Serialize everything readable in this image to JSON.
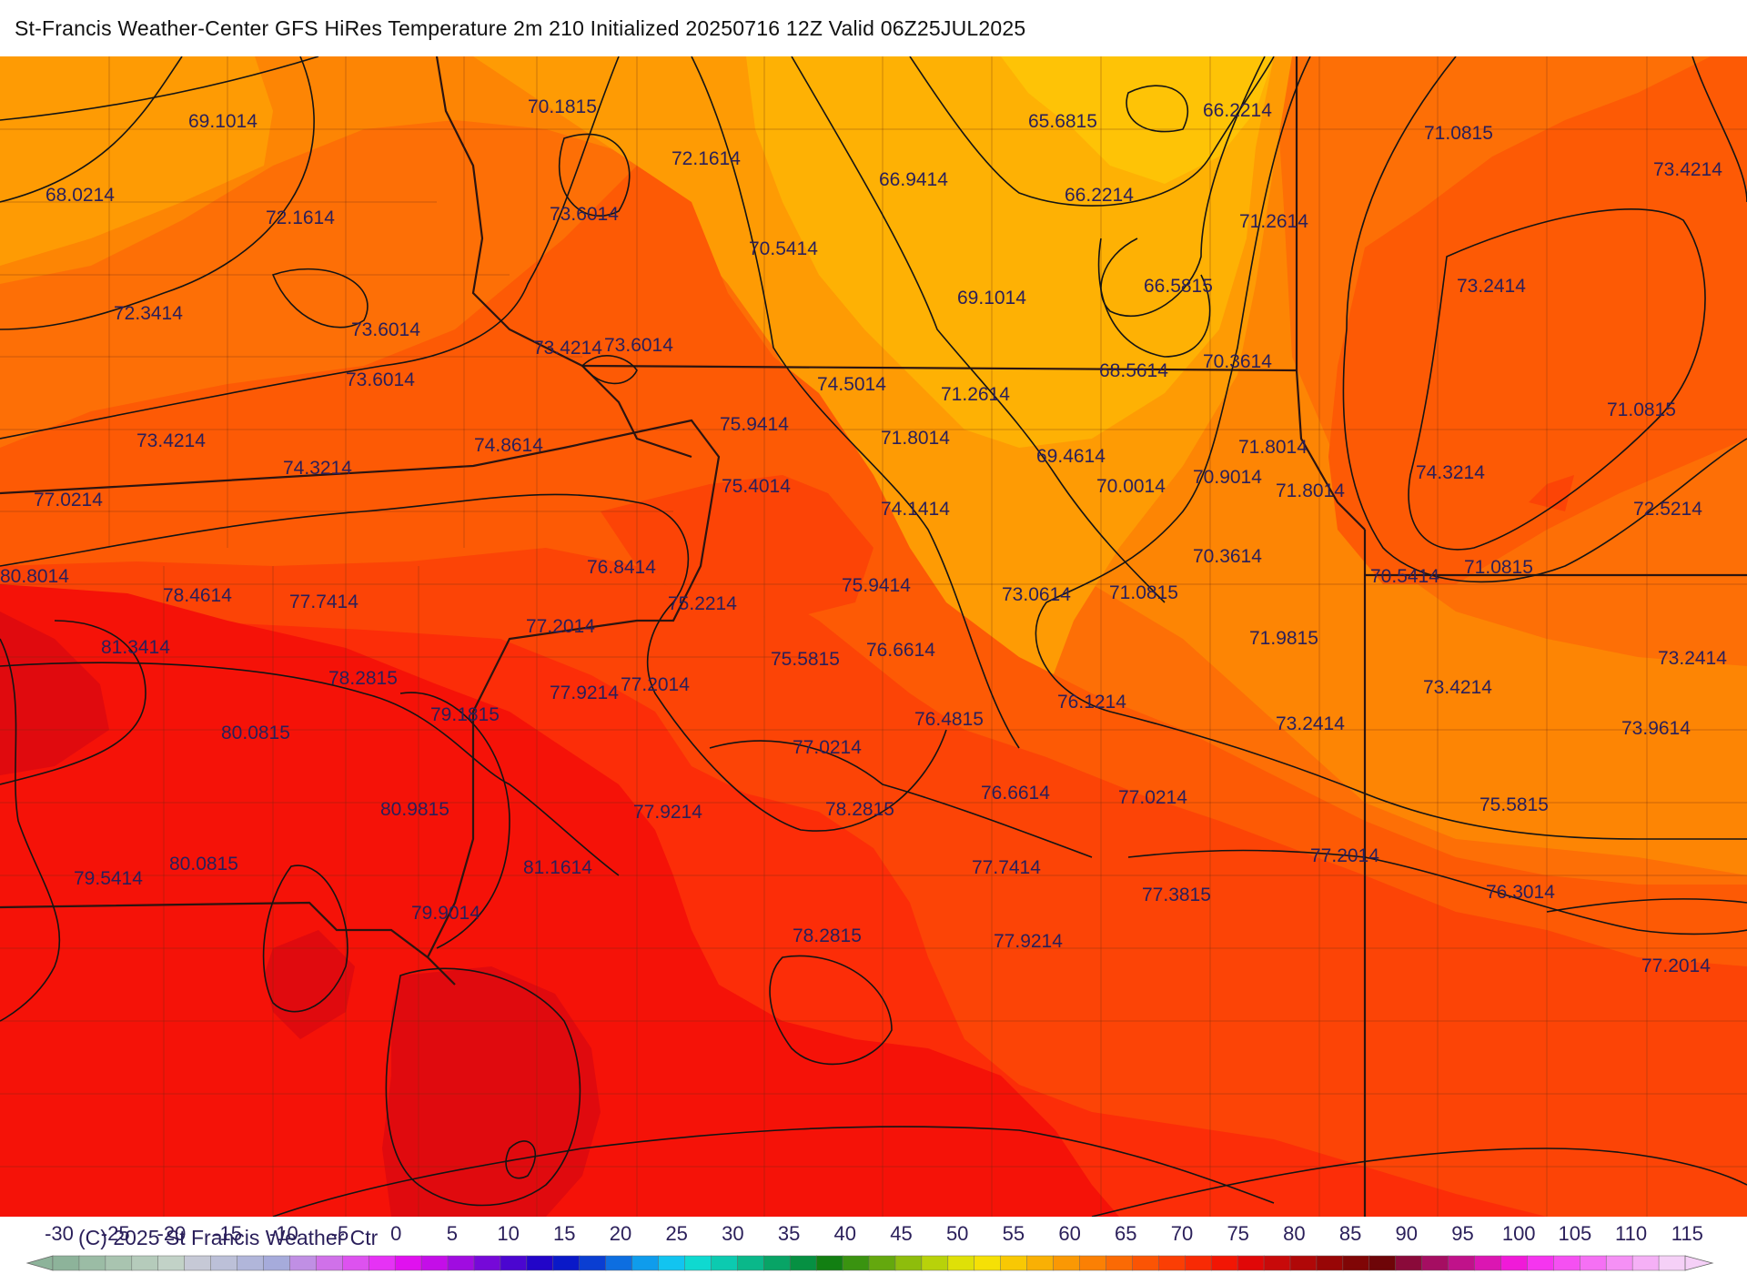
{
  "title": "St-Francis Weather-Center GFS HiRes Temperature 2m  210 Initialized 20250716 12Z Valid 06Z25JUL2025",
  "copyright": "(C) 2025 St Francis Weather Ctr",
  "temperature_labels": [
    {
      "id": "l1",
      "text": "69.1014"
    },
    {
      "id": "l2",
      "text": "70.1815"
    },
    {
      "id": "l3",
      "text": "65.6815"
    },
    {
      "id": "l4",
      "text": "66.2214"
    },
    {
      "id": "l5",
      "text": "71.0815"
    },
    {
      "id": "l6",
      "text": "73.4214"
    },
    {
      "id": "l7",
      "text": "68.0214"
    },
    {
      "id": "l8",
      "text": "72.1614"
    },
    {
      "id": "l9",
      "text": "72.1614"
    },
    {
      "id": "l10",
      "text": "73.6014"
    },
    {
      "id": "l11",
      "text": "66.9414"
    },
    {
      "id": "l12",
      "text": "66.2214"
    },
    {
      "id": "l13",
      "text": "71.2614"
    },
    {
      "id": "l14",
      "text": "70.5414"
    },
    {
      "id": "l15",
      "text": "66.5815"
    },
    {
      "id": "l16",
      "text": "73.2414"
    },
    {
      "id": "l17",
      "text": "72.3414"
    },
    {
      "id": "l18",
      "text": "73.6014"
    },
    {
      "id": "l19",
      "text": "69.1014"
    },
    {
      "id": "l20",
      "text": "73.4214"
    },
    {
      "id": "l21",
      "text": "73.6014"
    },
    {
      "id": "l22",
      "text": "68.5614"
    },
    {
      "id": "l23",
      "text": "70.3614"
    },
    {
      "id": "l24",
      "text": "73.6014"
    },
    {
      "id": "l25",
      "text": "74.5014"
    },
    {
      "id": "l26",
      "text": "71.2614"
    },
    {
      "id": "l27",
      "text": "71.0815"
    },
    {
      "id": "l28",
      "text": "73.4214"
    },
    {
      "id": "l29",
      "text": "74.8614"
    },
    {
      "id": "l30",
      "text": "75.9414"
    },
    {
      "id": "l31",
      "text": "71.8014"
    },
    {
      "id": "l32",
      "text": "69.4614"
    },
    {
      "id": "l33",
      "text": "71.8014"
    },
    {
      "id": "l34",
      "text": "74.3214"
    },
    {
      "id": "l35",
      "text": "74.3214"
    },
    {
      "id": "l36",
      "text": "70.9014"
    },
    {
      "id": "l37",
      "text": "77.0214"
    },
    {
      "id": "l38",
      "text": "75.4014"
    },
    {
      "id": "l39",
      "text": "70.0014"
    },
    {
      "id": "l40",
      "text": "71.8014"
    },
    {
      "id": "l41",
      "text": "74.1414"
    },
    {
      "id": "l42",
      "text": "72.5214"
    },
    {
      "id": "l43",
      "text": "70.3614"
    },
    {
      "id": "l44",
      "text": "76.8414"
    },
    {
      "id": "l45",
      "text": "71.0815"
    },
    {
      "id": "l46",
      "text": "70.5414"
    },
    {
      "id": "l47",
      "text": "80.8014"
    },
    {
      "id": "l48",
      "text": "78.4614"
    },
    {
      "id": "l49",
      "text": "77.7414"
    },
    {
      "id": "l50",
      "text": "75.2214"
    },
    {
      "id": "l51",
      "text": "75.9414"
    },
    {
      "id": "l52",
      "text": "73.0614"
    },
    {
      "id": "l53",
      "text": "71.0815"
    },
    {
      "id": "l54",
      "text": "77.2014"
    },
    {
      "id": "l55",
      "text": "71.9815"
    },
    {
      "id": "l56",
      "text": "81.3414"
    },
    {
      "id": "l57",
      "text": "76.6614"
    },
    {
      "id": "l58",
      "text": "73.2414"
    },
    {
      "id": "l59",
      "text": "75.5815"
    },
    {
      "id": "l60",
      "text": "78.2815"
    },
    {
      "id": "l61",
      "text": "77.9214"
    },
    {
      "id": "l62",
      "text": "77.2014"
    },
    {
      "id": "l63",
      "text": "73.4214"
    },
    {
      "id": "l64",
      "text": "76.1214"
    },
    {
      "id": "l65",
      "text": "79.1815"
    },
    {
      "id": "l66",
      "text": "76.4815"
    },
    {
      "id": "l67",
      "text": "73.2414"
    },
    {
      "id": "l68",
      "text": "80.0815"
    },
    {
      "id": "l69",
      "text": "73.9614"
    },
    {
      "id": "l70",
      "text": "77.0214"
    },
    {
      "id": "l71",
      "text": "76.6614"
    },
    {
      "id": "l72",
      "text": "77.0214"
    },
    {
      "id": "l73",
      "text": "80.9815"
    },
    {
      "id": "l74",
      "text": "75.5815"
    },
    {
      "id": "l75",
      "text": "78.2815"
    },
    {
      "id": "l76",
      "text": "77.9214"
    },
    {
      "id": "l77",
      "text": "80.0815"
    },
    {
      "id": "l78",
      "text": "77.2014"
    },
    {
      "id": "l79",
      "text": "81.1614"
    },
    {
      "id": "l80",
      "text": "77.7414"
    },
    {
      "id": "l81",
      "text": "79.5414"
    },
    {
      "id": "l82",
      "text": "77.3815"
    },
    {
      "id": "l83",
      "text": "76.3014"
    },
    {
      "id": "l84",
      "text": "79.9014"
    },
    {
      "id": "l85",
      "text": "78.2815"
    },
    {
      "id": "l86",
      "text": "77.9214"
    },
    {
      "id": "l87",
      "text": "77.2014"
    }
  ],
  "colorbar": {
    "tick_labels": [
      "-30",
      "-25",
      "-20",
      "-15",
      "-10",
      "-5",
      "0",
      "5",
      "10",
      "15",
      "20",
      "25",
      "30",
      "35",
      "40",
      "45",
      "50",
      "55",
      "60",
      "65",
      "70",
      "75",
      "80",
      "85",
      "90",
      "95",
      "100",
      "105",
      "110",
      "115"
    ],
    "colors": [
      "#8db39a",
      "#9bbca5",
      "#a9c4b0",
      "#b5cbbb",
      "#c2d2c7",
      "#c6c9d6",
      "#bcc0d8",
      "#b1b6da",
      "#a6abdb",
      "#c08fe4",
      "#d071e9",
      "#dd52ef",
      "#e632f5",
      "#e011ef",
      "#c40ee8",
      "#a00ce0",
      "#7609d8",
      "#4b06d0",
      "#2205c8",
      "#0a19c8",
      "#0a3ed2",
      "#0d6ee0",
      "#0f9cec",
      "#12c4f0",
      "#0fd9d0",
      "#0ccab0",
      "#0ab88a",
      "#08a466",
      "#069042",
      "#127f12",
      "#3a9310",
      "#64a80e",
      "#8ebd0c",
      "#b8d20a",
      "#dfe008",
      "#f5e006",
      "#f8c804",
      "#f9b004",
      "#fa9804",
      "#fb8004",
      "#fb6a04",
      "#fb5404",
      "#fb3e04",
      "#f82a04",
      "#f21604",
      "#e00808",
      "#c80a0a",
      "#b00808",
      "#980606",
      "#800606",
      "#6e0508",
      "#8a0a3a",
      "#a50e62",
      "#c0128a",
      "#db16b2",
      "#f01ad8",
      "#f535ef",
      "#f550f2",
      "#f570f4",
      "#f590f5",
      "#f5b0f6",
      "#f5d0f7"
    ]
  },
  "colors": {
    "t65": "#fec306",
    "t67": "#feb104",
    "t69": "#fe9b04",
    "t71": "#fd8504",
    "t73": "#fd6f06",
    "t75": "#fd5a05",
    "t77": "#fc4406",
    "t79": "#fc2d08",
    "t80": "#f51208",
    "t81": "#e00a0e",
    "contour": "#141414",
    "label": "#2a1f5a"
  }
}
